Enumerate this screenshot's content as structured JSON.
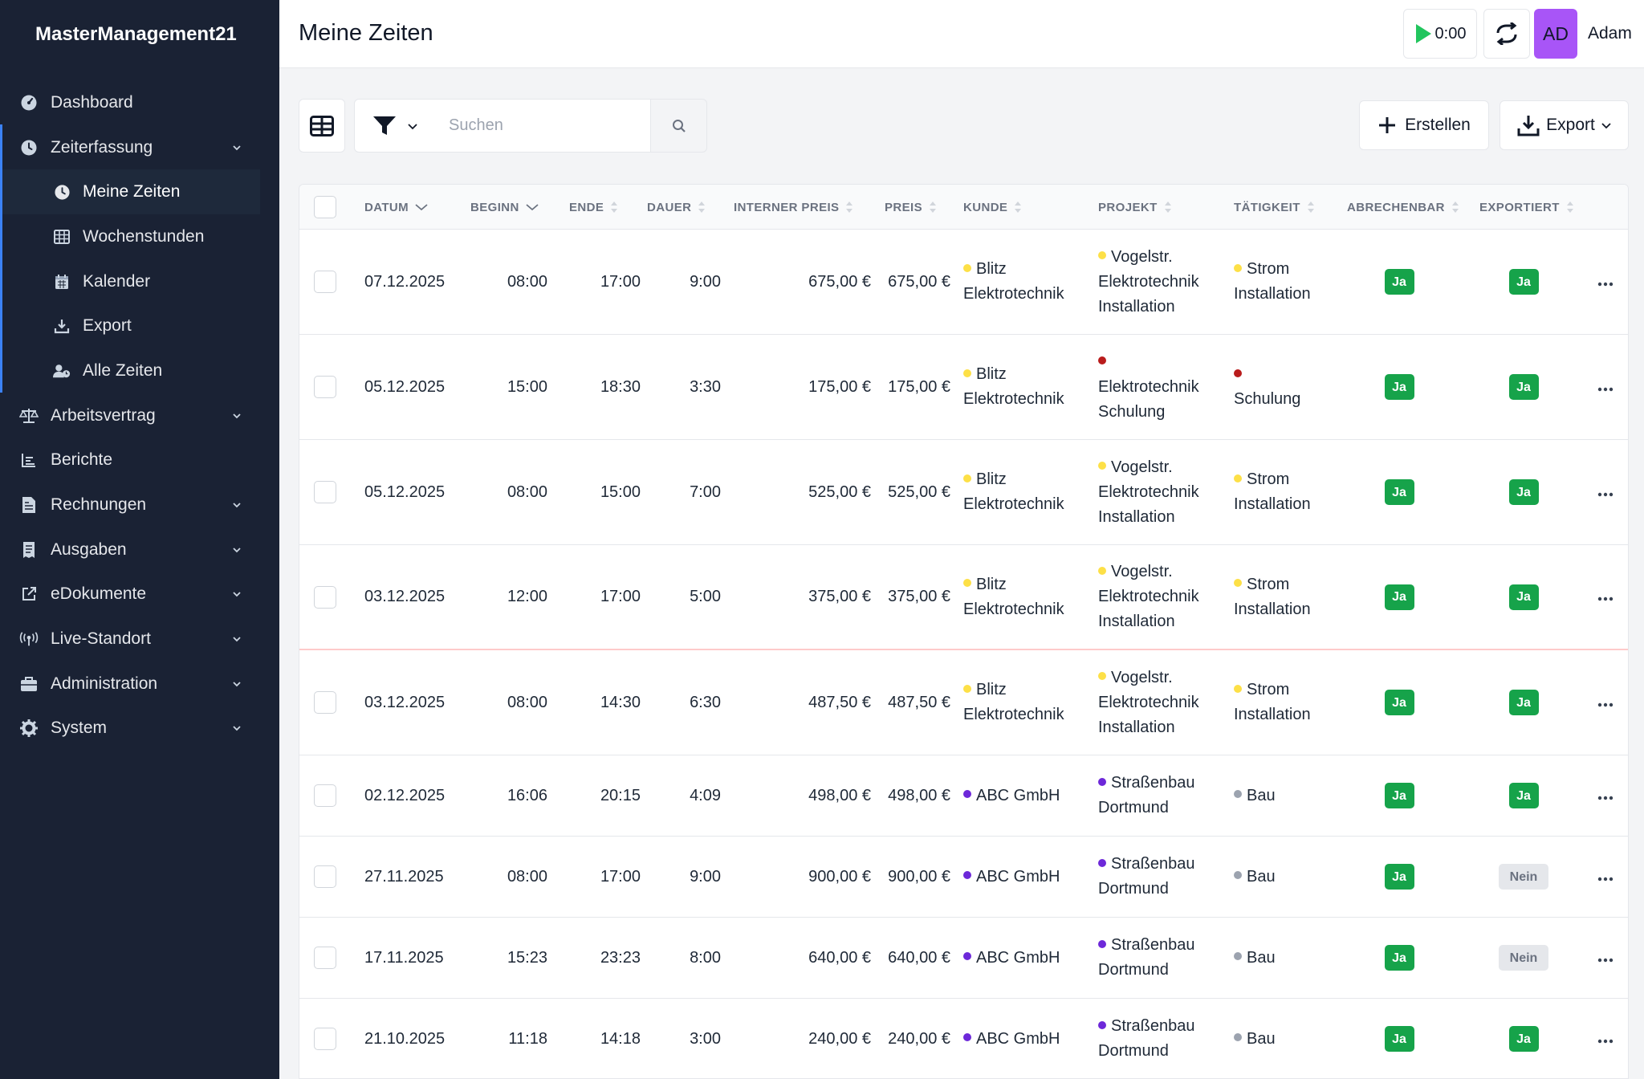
{
  "app": {
    "brand": "MasterManagement21"
  },
  "sidebar": {
    "items": [
      {
        "label": "Dashboard",
        "icon": "dashboard-gauge-icon"
      },
      {
        "label": "Zeiterfassung",
        "icon": "clock-icon",
        "expandable": true
      },
      {
        "label": "Arbeitsvertrag",
        "icon": "scale-icon",
        "expandable": true
      },
      {
        "label": "Berichte",
        "icon": "chart-icon"
      },
      {
        "label": "Rechnungen",
        "icon": "file-invoice-icon",
        "expandable": true
      },
      {
        "label": "Ausgaben",
        "icon": "receipt-icon",
        "expandable": true
      },
      {
        "label": "eDokumente",
        "icon": "external-link-icon",
        "expandable": true
      },
      {
        "label": "Live-Standort",
        "icon": "broadcast-icon",
        "expandable": true
      },
      {
        "label": "Administration",
        "icon": "briefcase-icon",
        "expandable": true
      },
      {
        "label": "System",
        "icon": "gear-icon",
        "expandable": true
      }
    ],
    "subitems": [
      {
        "label": "Meine Zeiten",
        "icon": "clock-icon",
        "current": true
      },
      {
        "label": "Wochenstunden",
        "icon": "table-icon"
      },
      {
        "label": "Kalender",
        "icon": "calendar-icon"
      },
      {
        "label": "Export",
        "icon": "download-icon"
      },
      {
        "label": "Alle Zeiten",
        "icon": "users-clock-icon"
      }
    ]
  },
  "header": {
    "title": "Meine Zeiten",
    "timer": "0:00",
    "avatar_initials": "AD",
    "user_name": "Adam"
  },
  "toolbar": {
    "search_placeholder": "Suchen",
    "create_label": "Erstellen",
    "export_label": "Export"
  },
  "table": {
    "columns": [
      "Datum",
      "Beginn",
      "Ende",
      "Dauer",
      "Interner Preis",
      "Preis",
      "Kunde",
      "Projekt",
      "Tätigkeit",
      "Abrechenbar",
      "Exportiert"
    ],
    "rows": [
      {
        "datum": "07.12.2025",
        "beginn": "08:00",
        "ende": "17:00",
        "dauer": "9:00",
        "interner_preis": "675,00 €",
        "preis": "675,00 €",
        "kunde": [
          "Blitz",
          "Elektrotechnik"
        ],
        "kunde_color": "#fde047",
        "projekt": [
          "Vogelstr.",
          "Elektrotechnik",
          "Installation"
        ],
        "projekt_color": "#fde047",
        "taetigkeit": [
          "Strom",
          "Installation"
        ],
        "taetigkeit_color": "#fde047",
        "abrechenbar": "Ja",
        "exportiert": "Ja"
      },
      {
        "datum": "05.12.2025",
        "beginn": "15:00",
        "ende": "18:30",
        "dauer": "3:30",
        "interner_preis": "175,00 €",
        "preis": "175,00 €",
        "kunde": [
          "Blitz",
          "Elektrotechnik"
        ],
        "kunde_color": "#fde047",
        "projekt": [
          "",
          "Elektrotechnik",
          "Schulung"
        ],
        "projekt_color": "#b91c1c",
        "taetigkeit": [
          "",
          "Schulung"
        ],
        "taetigkeit_color": "#b91c1c",
        "abrechenbar": "Ja",
        "exportiert": "Ja"
      },
      {
        "datum": "05.12.2025",
        "beginn": "08:00",
        "ende": "15:00",
        "dauer": "7:00",
        "interner_preis": "525,00 €",
        "preis": "525,00 €",
        "kunde": [
          "Blitz",
          "Elektrotechnik"
        ],
        "kunde_color": "#fde047",
        "projekt": [
          "Vogelstr.",
          "Elektrotechnik",
          "Installation"
        ],
        "projekt_color": "#fde047",
        "taetigkeit": [
          "Strom",
          "Installation"
        ],
        "taetigkeit_color": "#fde047",
        "abrechenbar": "Ja",
        "exportiert": "Ja"
      },
      {
        "datum": "03.12.2025",
        "beginn": "12:00",
        "ende": "17:00",
        "dauer": "5:00",
        "interner_preis": "375,00 €",
        "preis": "375,00 €",
        "kunde": [
          "Blitz",
          "Elektrotechnik"
        ],
        "kunde_color": "#fde047",
        "projekt": [
          "Vogelstr.",
          "Elektrotechnik",
          "Installation"
        ],
        "projekt_color": "#fde047",
        "taetigkeit": [
          "Strom",
          "Installation"
        ],
        "taetigkeit_color": "#fde047",
        "abrechenbar": "Ja",
        "exportiert": "Ja"
      },
      {
        "datum": "03.12.2025",
        "beginn": "08:00",
        "ende": "14:30",
        "dauer": "6:30",
        "interner_preis": "487,50 €",
        "preis": "487,50 €",
        "kunde": [
          "Blitz",
          "Elektrotechnik"
        ],
        "kunde_color": "#fde047",
        "projekt": [
          "Vogelstr.",
          "Elektrotechnik",
          "Installation"
        ],
        "projekt_color": "#fde047",
        "taetigkeit": [
          "Strom",
          "Installation"
        ],
        "taetigkeit_color": "#fde047",
        "abrechenbar": "Ja",
        "exportiert": "Ja"
      },
      {
        "datum": "02.12.2025",
        "beginn": "16:06",
        "ende": "20:15",
        "dauer": "4:09",
        "interner_preis": "498,00 €",
        "preis": "498,00 €",
        "kunde": [
          "ABC GmbH"
        ],
        "kunde_color": "#6d28d9",
        "projekt": [
          "Straßenbau",
          "Dortmund"
        ],
        "projekt_color": "#6d28d9",
        "taetigkeit": [
          "Bau"
        ],
        "taetigkeit_color": "#9ca3af",
        "abrechenbar": "Ja",
        "exportiert": "Ja"
      },
      {
        "datum": "27.11.2025",
        "beginn": "08:00",
        "ende": "17:00",
        "dauer": "9:00",
        "interner_preis": "900,00 €",
        "preis": "900,00 €",
        "kunde": [
          "ABC GmbH"
        ],
        "kunde_color": "#6d28d9",
        "projekt": [
          "Straßenbau",
          "Dortmund"
        ],
        "projekt_color": "#6d28d9",
        "taetigkeit": [
          "Bau"
        ],
        "taetigkeit_color": "#9ca3af",
        "abrechenbar": "Ja",
        "exportiert": "Nein"
      },
      {
        "datum": "17.11.2025",
        "beginn": "15:23",
        "ende": "23:23",
        "dauer": "8:00",
        "interner_preis": "640,00 €",
        "preis": "640,00 €",
        "kunde": [
          "ABC GmbH"
        ],
        "kunde_color": "#6d28d9",
        "projekt": [
          "Straßenbau",
          "Dortmund"
        ],
        "projekt_color": "#6d28d9",
        "taetigkeit": [
          "Bau"
        ],
        "taetigkeit_color": "#9ca3af",
        "abrechenbar": "Ja",
        "exportiert": "Nein"
      },
      {
        "datum": "21.10.2025",
        "beginn": "11:18",
        "ende": "14:18",
        "dauer": "3:00",
        "interner_preis": "240,00 €",
        "preis": "240,00 €",
        "kunde": [
          "ABC GmbH"
        ],
        "kunde_color": "#6d28d9",
        "projekt": [
          "Straßenbau",
          "Dortmund"
        ],
        "projekt_color": "#6d28d9",
        "taetigkeit": [
          "Bau"
        ],
        "taetigkeit_color": "#9ca3af",
        "abrechenbar": "Ja",
        "exportiert": "Ja"
      }
    ]
  }
}
